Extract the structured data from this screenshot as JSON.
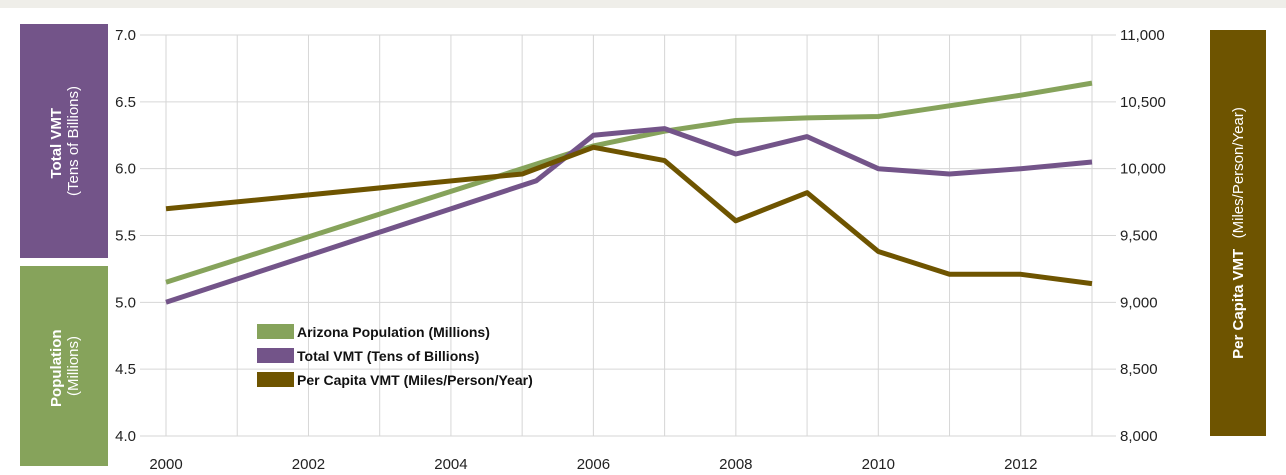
{
  "colors": {
    "background": "#ffffff",
    "top_band": "#efeee9",
    "grid": "#d6d6d6",
    "population": "#86a35b",
    "total_vmt": "#735489",
    "per_capita": "#6e5400"
  },
  "panels": {
    "total_vmt": {
      "bold": "Total VMT",
      "regular": "(Tens of Billions)"
    },
    "population": {
      "bold": "Population",
      "regular": "(Millions)"
    },
    "per_capita": {
      "bold": "Per Capita VMT",
      "regular": "(Miles/Person/Year)"
    }
  },
  "chart_data": {
    "type": "line",
    "x_ticks": [
      "2000",
      "2002",
      "2004",
      "2006",
      "2008",
      "2010",
      "2012"
    ],
    "xlim": [
      2000,
      2013
    ],
    "left_axis": {
      "ylim": [
        4.0,
        7.0
      ],
      "ticks": [
        "4.0",
        "4.5",
        "5.0",
        "5.5",
        "6.0",
        "6.5",
        "7.0"
      ]
    },
    "right_axis": {
      "ylim": [
        8000,
        11000
      ],
      "ticks": [
        "8,000",
        "8,500",
        "9,000",
        "9,500",
        "10,000",
        "10,500",
        "11,000"
      ]
    },
    "grid": true,
    "legend_position": "bottom-left inside plot",
    "series": [
      {
        "name": "Arizona Population (Millions)",
        "axis": "left",
        "color": "#86a35b",
        "points": [
          [
            2000,
            5.15
          ],
          [
            2006,
            6.17
          ],
          [
            2007,
            6.28
          ],
          [
            2008,
            6.36
          ],
          [
            2009,
            6.38
          ],
          [
            2010,
            6.39
          ],
          [
            2011,
            6.47
          ],
          [
            2012,
            6.55
          ],
          [
            2013,
            6.64
          ]
        ]
      },
      {
        "name": "Total VMT (Tens of Billions)",
        "axis": "left",
        "color": "#735489",
        "points": [
          [
            2000,
            5.0
          ],
          [
            2005.2,
            5.91
          ],
          [
            2006,
            6.25
          ],
          [
            2007,
            6.3
          ],
          [
            2008,
            6.11
          ],
          [
            2009,
            6.24
          ],
          [
            2010,
            6.0
          ],
          [
            2011,
            5.96
          ],
          [
            2012,
            6.0
          ],
          [
            2013,
            6.05
          ]
        ]
      },
      {
        "name": "Per Capita VMT (Miles/Person/Year)",
        "axis": "right",
        "color": "#6e5400",
        "points": [
          [
            2000,
            9700
          ],
          [
            2005,
            9960
          ],
          [
            2006,
            10160
          ],
          [
            2007,
            10060
          ],
          [
            2008,
            9610
          ],
          [
            2009,
            9820
          ],
          [
            2010,
            9380
          ],
          [
            2011,
            9210
          ],
          [
            2012,
            9210
          ],
          [
            2013,
            9140
          ]
        ]
      }
    ]
  }
}
